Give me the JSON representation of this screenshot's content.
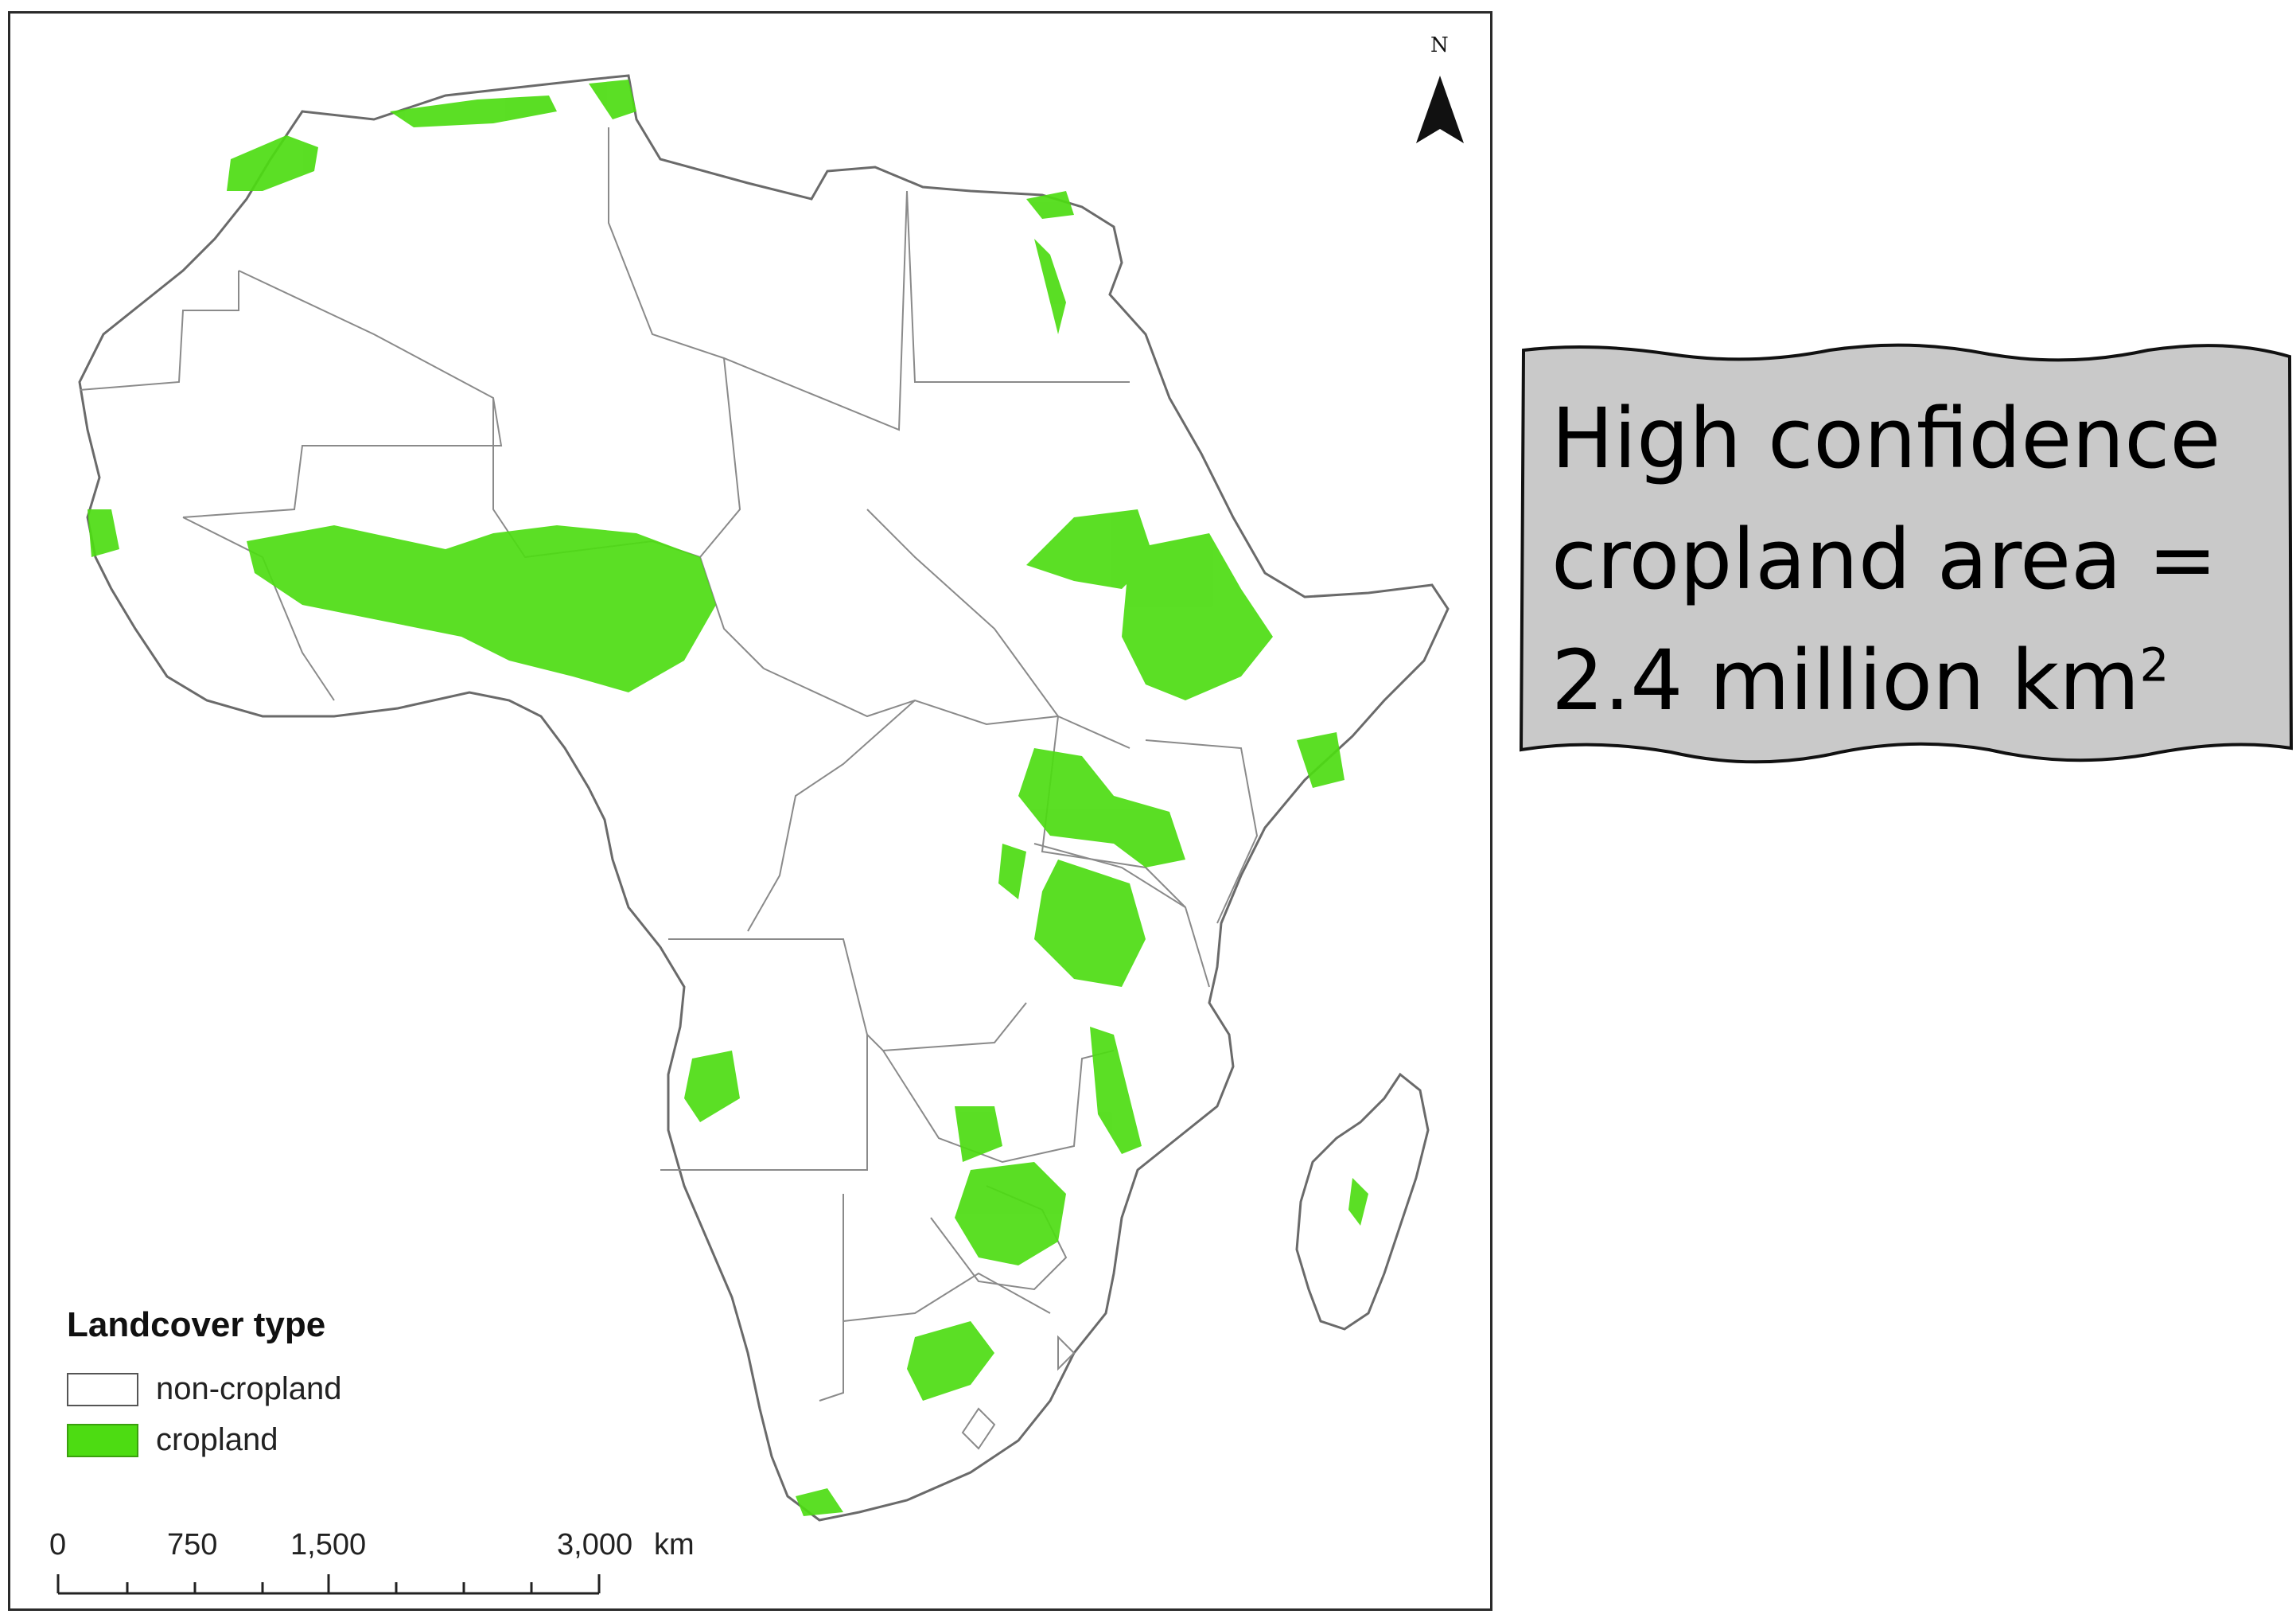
{
  "map": {
    "north_label": "N",
    "legend": {
      "title": "Landcover type",
      "items": [
        {
          "label": "non-cropland",
          "color": "#ffffff"
        },
        {
          "label": "cropland",
          "color": "#4ddc12"
        }
      ]
    },
    "scale_bar": {
      "labels": [
        "0",
        "750",
        "1,500",
        "3,000",
        "km"
      ]
    },
    "colors": {
      "cropland": "#4ddc12",
      "border": "#7a7a7a",
      "coast": "#6a6a6a"
    }
  },
  "callout": {
    "line1": "High confidence",
    "line2": "cropland area =",
    "line3_main": "2.4 million km",
    "line3_sup": "2"
  }
}
